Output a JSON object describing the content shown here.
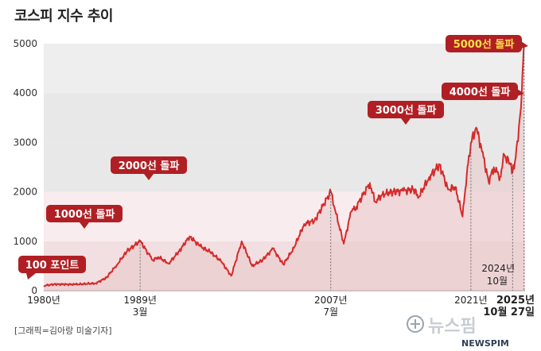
{
  "chart_data": {
    "type": "line",
    "title": "코스피 지수 추이",
    "ylim": [
      0,
      5000
    ],
    "yticks": [
      0,
      1000,
      2000,
      3000,
      4000,
      5000
    ],
    "xlim": [
      1980,
      2026.2
    ],
    "grid": true,
    "band_colors": [
      "#f2dfe1",
      "#f9ecee",
      "#e8e8e8",
      "#e8e8e8"
    ],
    "line_color": "#d52b2b",
    "fill_color": "#e9c9cc",
    "series": [
      {
        "values": [
          [
            1980.0,
            100
          ],
          [
            1981.0,
            130
          ],
          [
            1983.0,
            125
          ],
          [
            1985.0,
            150
          ],
          [
            1986.0,
            260
          ],
          [
            1987.0,
            520
          ],
          [
            1988.0,
            800
          ],
          [
            1989.25,
            1005
          ],
          [
            1990.0,
            760
          ],
          [
            1990.5,
            620
          ],
          [
            1991.0,
            680
          ],
          [
            1992.0,
            550
          ],
          [
            1993.0,
            800
          ],
          [
            1994.0,
            1100
          ],
          [
            1995.0,
            900
          ],
          [
            1996.0,
            780
          ],
          [
            1997.0,
            600
          ],
          [
            1998.0,
            300
          ],
          [
            1999.0,
            1000
          ],
          [
            2000.0,
            500
          ],
          [
            2001.0,
            620
          ],
          [
            2002.0,
            850
          ],
          [
            2003.0,
            530
          ],
          [
            2004.0,
            860
          ],
          [
            2005.0,
            1350
          ],
          [
            2006.0,
            1420
          ],
          [
            2007.55,
            2005
          ],
          [
            2008.0,
            1600
          ],
          [
            2008.8,
            950
          ],
          [
            2009.5,
            1600
          ],
          [
            2010.0,
            1700
          ],
          [
            2011.3,
            2180
          ],
          [
            2011.8,
            1800
          ],
          [
            2012.5,
            1950
          ],
          [
            2013.5,
            2000
          ],
          [
            2014.5,
            2020
          ],
          [
            2015.5,
            2050
          ],
          [
            2016.0,
            1900
          ],
          [
            2017.0,
            2300
          ],
          [
            2018.0,
            2550
          ],
          [
            2018.8,
            2050
          ],
          [
            2019.5,
            2100
          ],
          [
            2020.2,
            1500
          ],
          [
            2020.6,
            2350
          ],
          [
            2021.0,
            3000
          ],
          [
            2021.5,
            3300
          ],
          [
            2022.0,
            2900
          ],
          [
            2022.7,
            2200
          ],
          [
            2023.2,
            2500
          ],
          [
            2023.8,
            2300
          ],
          [
            2024.2,
            2750
          ],
          [
            2024.8,
            2550
          ],
          [
            2025.0,
            2400
          ],
          [
            2025.3,
            2700
          ],
          [
            2025.6,
            3300
          ],
          [
            2025.8,
            3700
          ],
          [
            2025.88,
            4000
          ],
          [
            2026.0,
            4600
          ],
          [
            2026.1,
            5000
          ]
        ]
      }
    ],
    "x_labels": [
      {
        "x": 1980.0,
        "line1": "1980년",
        "line2": "",
        "bold": false
      },
      {
        "x": 1989.25,
        "line1": "1989년",
        "line2": "3월",
        "bold": false
      },
      {
        "x": 2007.55,
        "line1": "2007년",
        "line2": "7월",
        "bold": false
      },
      {
        "x": 2021.0,
        "line1": "2021년",
        "line2": "",
        "bold": false
      },
      {
        "x": 2026.1,
        "line1": "2025년",
        "line2": "10월 27일",
        "bold": true
      }
    ],
    "annotations": [
      {
        "text": "100 포인트",
        "x": 1980.0,
        "y": 100,
        "style": "red",
        "side": "left"
      },
      {
        "text": "1000선 돌파",
        "x": 1989.25,
        "y": 1005,
        "style": "red",
        "side": "center"
      },
      {
        "text": "2000선 돌파",
        "x": 2007.55,
        "y": 2005,
        "style": "red",
        "side": "center"
      },
      {
        "text": "3000선 돌파",
        "x": 2021.0,
        "y": 3000,
        "style": "red",
        "side": "center"
      },
      {
        "text": "4000선 돌파",
        "x": 2025.88,
        "y": 4000,
        "style": "red",
        "side": "right"
      },
      {
        "text": "5000선 돌파",
        "x": 2026.1,
        "y": 5000,
        "style": "yellow",
        "side": "right"
      }
    ],
    "inline_label": {
      "line1": "2024년",
      "line2": "10월",
      "x": 2025.0
    }
  },
  "header": {
    "title": "코스피 지수 추이"
  },
  "footer": {
    "credit": "[그래픽=김아랑 미술기자]",
    "logo_main": "뉴스핌",
    "logo_sub": "NEWSPIM"
  }
}
